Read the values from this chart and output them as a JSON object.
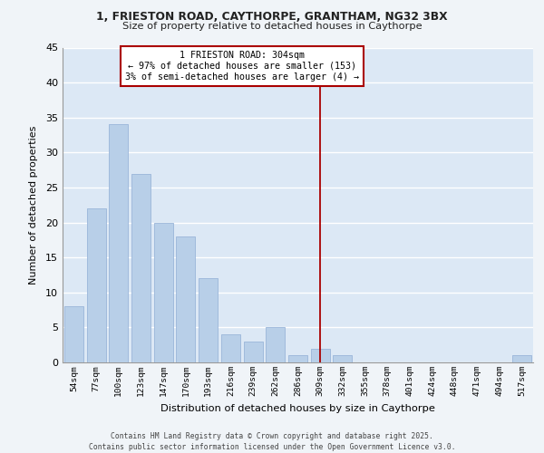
{
  "title1": "1, FRIESTON ROAD, CAYTHORPE, GRANTHAM, NG32 3BX",
  "title2": "Size of property relative to detached houses in Caythorpe",
  "xlabel": "Distribution of detached houses by size in Caythorpe",
  "ylabel": "Number of detached properties",
  "categories": [
    "54sqm",
    "77sqm",
    "100sqm",
    "123sqm",
    "147sqm",
    "170sqm",
    "193sqm",
    "216sqm",
    "239sqm",
    "262sqm",
    "286sqm",
    "309sqm",
    "332sqm",
    "355sqm",
    "378sqm",
    "401sqm",
    "424sqm",
    "448sqm",
    "471sqm",
    "494sqm",
    "517sqm"
  ],
  "values": [
    8,
    22,
    34,
    27,
    20,
    18,
    12,
    4,
    3,
    5,
    1,
    2,
    1,
    0,
    0,
    0,
    0,
    0,
    0,
    0,
    1
  ],
  "bar_color": "#b8cfe8",
  "bar_edge_color": "#9ab5d9",
  "annotation_box_color": "#ffffff",
  "annotation_border_color": "#aa0000",
  "annotation_text_line1": "1 FRIESTON ROAD: 304sqm",
  "annotation_text_line2": "← 97% of detached houses are smaller (153)",
  "annotation_text_line3": "3% of semi-detached houses are larger (4) →",
  "vline_color": "#aa0000",
  "vline_bar_index": 11,
  "ylim": [
    0,
    45
  ],
  "yticks": [
    0,
    5,
    10,
    15,
    20,
    25,
    30,
    35,
    40,
    45
  ],
  "background_color": "#dce8f5",
  "plot_bg_color": "#dce8f5",
  "grid_color": "#ffffff",
  "footer_line1": "Contains HM Land Registry data © Crown copyright and database right 2025.",
  "footer_line2": "Contains public sector information licensed under the Open Government Licence v3.0."
}
